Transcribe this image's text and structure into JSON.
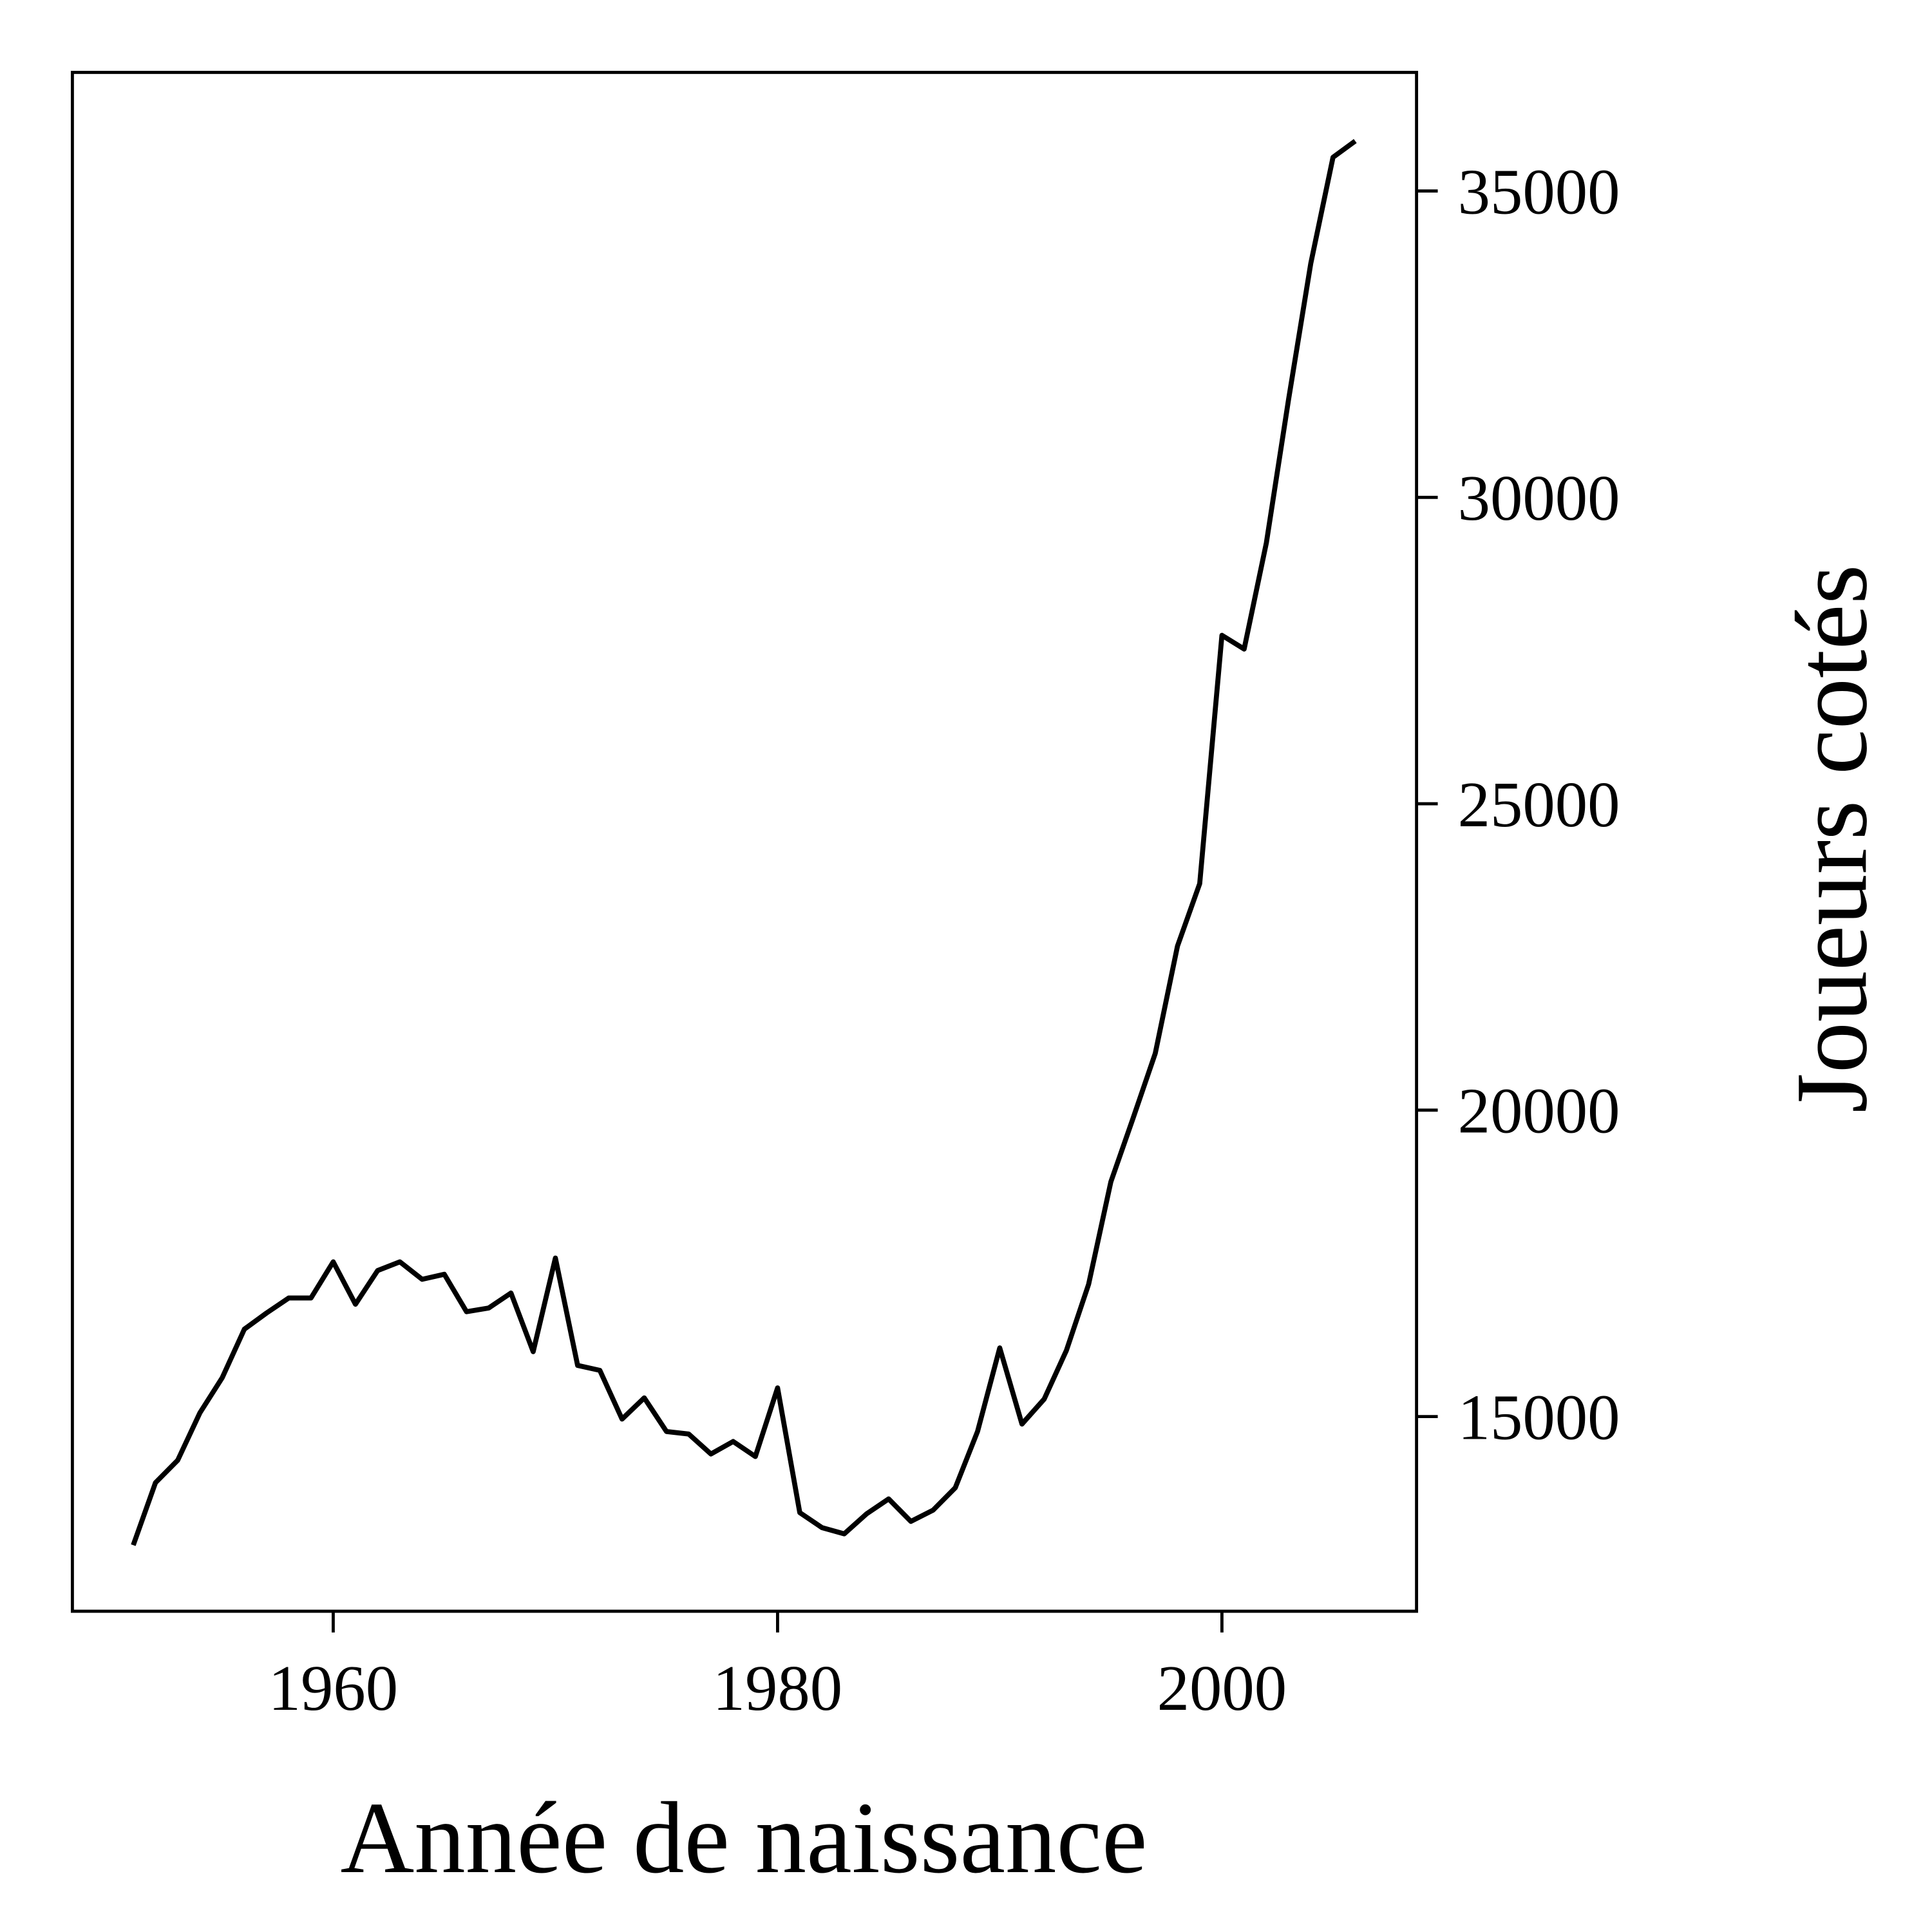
{
  "chart_data": {
    "type": "line",
    "x_label": "Année de naissance",
    "y_label": "Joueurs cotés",
    "x": [
      1951,
      1952,
      1953,
      1954,
      1955,
      1956,
      1957,
      1958,
      1959,
      1960,
      1961,
      1962,
      1963,
      1964,
      1965,
      1966,
      1967,
      1968,
      1969,
      1970,
      1971,
      1972,
      1973,
      1974,
      1975,
      1976,
      1977,
      1978,
      1979,
      1980,
      1981,
      1982,
      1983,
      1984,
      1985,
      1986,
      1987,
      1988,
      1989,
      1990,
      1991,
      1992,
      1993,
      1994,
      1995,
      1996,
      1997,
      1998,
      1999,
      2000,
      2001,
      2002,
      2003,
      2004,
      2005,
      2006
    ],
    "values": [
      12902,
      13921,
      14287,
      15061,
      15631,
      16426,
      16690,
      16935,
      16935,
      17525,
      16833,
      17383,
      17525,
      17240,
      17322,
      16711,
      16772,
      17016,
      16059,
      17587,
      15835,
      15754,
      14959,
      15305,
      14756,
      14715,
      14389,
      14593,
      14348,
      15468,
      13432,
      13187,
      13086,
      13411,
      13656,
      13289,
      13473,
      13839,
      14756,
      16120,
      14878,
      15285,
      16079,
      17159,
      18829,
      19868,
      20927,
      22678,
      23697,
      27749,
      27525,
      29257,
      31599,
      33819,
      35550,
      35815
    ],
    "color": "#000000",
    "xlim": [
      1948.26,
      2008.76
    ],
    "ylim": [
      11823,
      36935
    ],
    "xticks": [
      1960,
      1980,
      2000
    ],
    "yticks": [
      15000,
      20000,
      25000,
      30000,
      35000
    ],
    "y_axis_side": "right"
  }
}
